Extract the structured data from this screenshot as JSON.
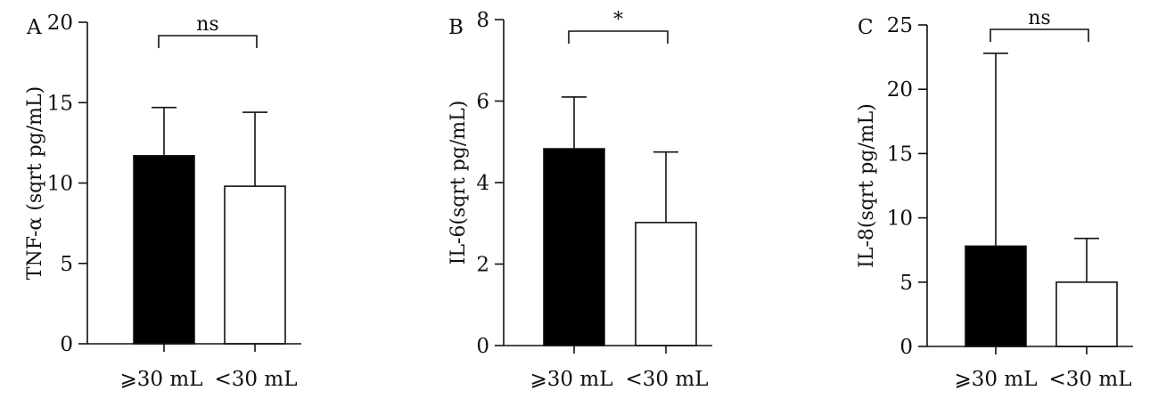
{
  "chart_data": [
    {
      "type": "bar",
      "panel_label": "A",
      "ylabel": "TNF-α (sqrt pg/mL)",
      "categories": [
        "⩾30 mL",
        "<30 mL"
      ],
      "values": [
        11.7,
        9.8
      ],
      "error_upper": [
        14.7,
        14.4
      ],
      "bar_fills": [
        "#000000",
        "#ffffff"
      ],
      "ylim": [
        0,
        20
      ],
      "yticks": [
        "0",
        "5",
        "10",
        "15",
        "20"
      ],
      "significance": "ns"
    },
    {
      "type": "bar",
      "panel_label": "B",
      "ylabel": "IL-6(sqrt pg/mL)",
      "categories": [
        "⩾30 mL",
        "<30 mL"
      ],
      "values": [
        4.83,
        3.02
      ],
      "error_upper": [
        6.1,
        4.75
      ],
      "bar_fills": [
        "#000000",
        "#ffffff"
      ],
      "ylim": [
        0,
        8
      ],
      "yticks": [
        "0",
        "2",
        "4",
        "6",
        "8"
      ],
      "significance": "*"
    },
    {
      "type": "bar",
      "panel_label": "C",
      "ylabel": "IL-8(sqrt pg/mL)",
      "categories": [
        "⩾30 mL",
        "<30 mL"
      ],
      "values": [
        7.8,
        5.0
      ],
      "error_upper": [
        22.8,
        8.4
      ],
      "bar_fills": [
        "#000000",
        "#ffffff"
      ],
      "ylim": [
        0,
        25
      ],
      "yticks": [
        "0",
        "5",
        "10",
        "15",
        "20",
        "25"
      ],
      "significance": "ns"
    }
  ]
}
